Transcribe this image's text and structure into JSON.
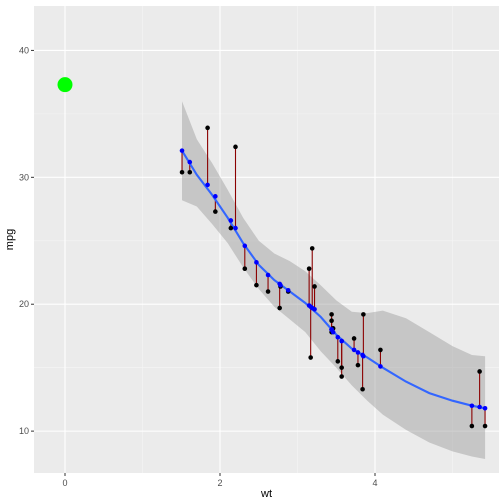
{
  "chart_data": {
    "type": "scatter",
    "xlabel": "wt",
    "ylabel": "mpg",
    "xlim": [
      -0.4,
      5.6
    ],
    "ylim": [
      6.7,
      43.5
    ],
    "x_ticks": [
      0,
      2,
      4
    ],
    "y_ticks": [
      10,
      20,
      30,
      40
    ],
    "grid": true,
    "points": [
      {
        "x": 1.51,
        "y": 30.4
      },
      {
        "x": 1.61,
        "y": 30.4
      },
      {
        "x": 1.84,
        "y": 33.9
      },
      {
        "x": 1.94,
        "y": 27.3
      },
      {
        "x": 2.14,
        "y": 26.0
      },
      {
        "x": 2.2,
        "y": 32.4
      },
      {
        "x": 2.32,
        "y": 22.8
      },
      {
        "x": 2.47,
        "y": 21.5
      },
      {
        "x": 2.62,
        "y": 21.0
      },
      {
        "x": 2.77,
        "y": 19.7
      },
      {
        "x": 2.78,
        "y": 21.4
      },
      {
        "x": 2.88,
        "y": 21.0
      },
      {
        "x": 3.15,
        "y": 22.8
      },
      {
        "x": 3.17,
        "y": 15.8
      },
      {
        "x": 3.19,
        "y": 24.4
      },
      {
        "x": 3.22,
        "y": 21.4
      },
      {
        "x": 3.44,
        "y": 18.7
      },
      {
        "x": 3.44,
        "y": 19.2
      },
      {
        "x": 3.44,
        "y": 17.8
      },
      {
        "x": 3.46,
        "y": 18.1
      },
      {
        "x": 3.52,
        "y": 15.5
      },
      {
        "x": 3.57,
        "y": 14.3
      },
      {
        "x": 3.57,
        "y": 15.0
      },
      {
        "x": 3.73,
        "y": 17.3
      },
      {
        "x": 3.78,
        "y": 15.2
      },
      {
        "x": 3.84,
        "y": 13.3
      },
      {
        "x": 3.85,
        "y": 19.2
      },
      {
        "x": 4.07,
        "y": 16.4
      },
      {
        "x": 5.25,
        "y": 10.4
      },
      {
        "x": 5.35,
        "y": 14.7
      },
      {
        "x": 5.42,
        "y": 10.4
      }
    ],
    "fitted": [
      {
        "x": 1.51,
        "y": 32.1
      },
      {
        "x": 1.61,
        "y": 31.2
      },
      {
        "x": 1.84,
        "y": 29.4
      },
      {
        "x": 1.94,
        "y": 28.5
      },
      {
        "x": 2.14,
        "y": 26.6
      },
      {
        "x": 2.2,
        "y": 26.0
      },
      {
        "x": 2.32,
        "y": 24.6
      },
      {
        "x": 2.47,
        "y": 23.3
      },
      {
        "x": 2.62,
        "y": 22.3
      },
      {
        "x": 2.77,
        "y": 21.6
      },
      {
        "x": 2.78,
        "y": 21.5
      },
      {
        "x": 2.88,
        "y": 21.1
      },
      {
        "x": 3.15,
        "y": 19.9
      },
      {
        "x": 3.17,
        "y": 19.8
      },
      {
        "x": 3.19,
        "y": 19.7
      },
      {
        "x": 3.22,
        "y": 19.6
      },
      {
        "x": 3.44,
        "y": 18.0
      },
      {
        "x": 3.44,
        "y": 18.0
      },
      {
        "x": 3.44,
        "y": 18.0
      },
      {
        "x": 3.46,
        "y": 17.8
      },
      {
        "x": 3.52,
        "y": 17.4
      },
      {
        "x": 3.57,
        "y": 17.1
      },
      {
        "x": 3.57,
        "y": 17.1
      },
      {
        "x": 3.73,
        "y": 16.4
      },
      {
        "x": 3.78,
        "y": 16.2
      },
      {
        "x": 3.84,
        "y": 16.0
      },
      {
        "x": 3.85,
        "y": 15.9
      },
      {
        "x": 4.07,
        "y": 15.1
      },
      {
        "x": 5.25,
        "y": 12.0
      },
      {
        "x": 5.35,
        "y": 11.9
      },
      {
        "x": 5.42,
        "y": 11.8
      }
    ],
    "smooth": {
      "x": [
        1.51,
        1.7,
        1.9,
        2.1,
        2.3,
        2.5,
        2.7,
        2.9,
        3.1,
        3.3,
        3.5,
        3.7,
        3.9,
        4.1,
        4.4,
        4.7,
        5.0,
        5.25,
        5.42
      ],
      "y": [
        32.1,
        30.2,
        28.6,
        26.8,
        24.8,
        23.1,
        21.9,
        21.0,
        20.1,
        19.0,
        17.6,
        16.5,
        15.8,
        15.0,
        13.9,
        13.0,
        12.4,
        12.0,
        11.8
      ],
      "lower": [
        28.2,
        27.7,
        26.3,
        24.8,
        22.9,
        21.2,
        19.8,
        18.8,
        17.8,
        16.3,
        15.0,
        13.6,
        12.4,
        11.3,
        10.1,
        9.1,
        8.4,
        8.0,
        7.8
      ],
      "upper": [
        36.0,
        33.0,
        31.1,
        29.0,
        26.8,
        25.0,
        24.0,
        23.4,
        22.6,
        21.5,
        20.3,
        19.4,
        19.3,
        19.5,
        18.9,
        17.8,
        16.7,
        16.0,
        15.9
      ]
    },
    "highlight_point": {
      "x": 0,
      "y": 37.3
    },
    "colors": {
      "panel": "#ebebeb",
      "grid_major": "#ffffff",
      "grid_minor": "#f5f5f5",
      "ribbon": "#999999",
      "smooth_line": "#3366ff",
      "observed_point": "#000000",
      "fitted_point": "#0000ff",
      "residual_segment": "#8b0000",
      "highlight_point": "#00ff00"
    }
  }
}
